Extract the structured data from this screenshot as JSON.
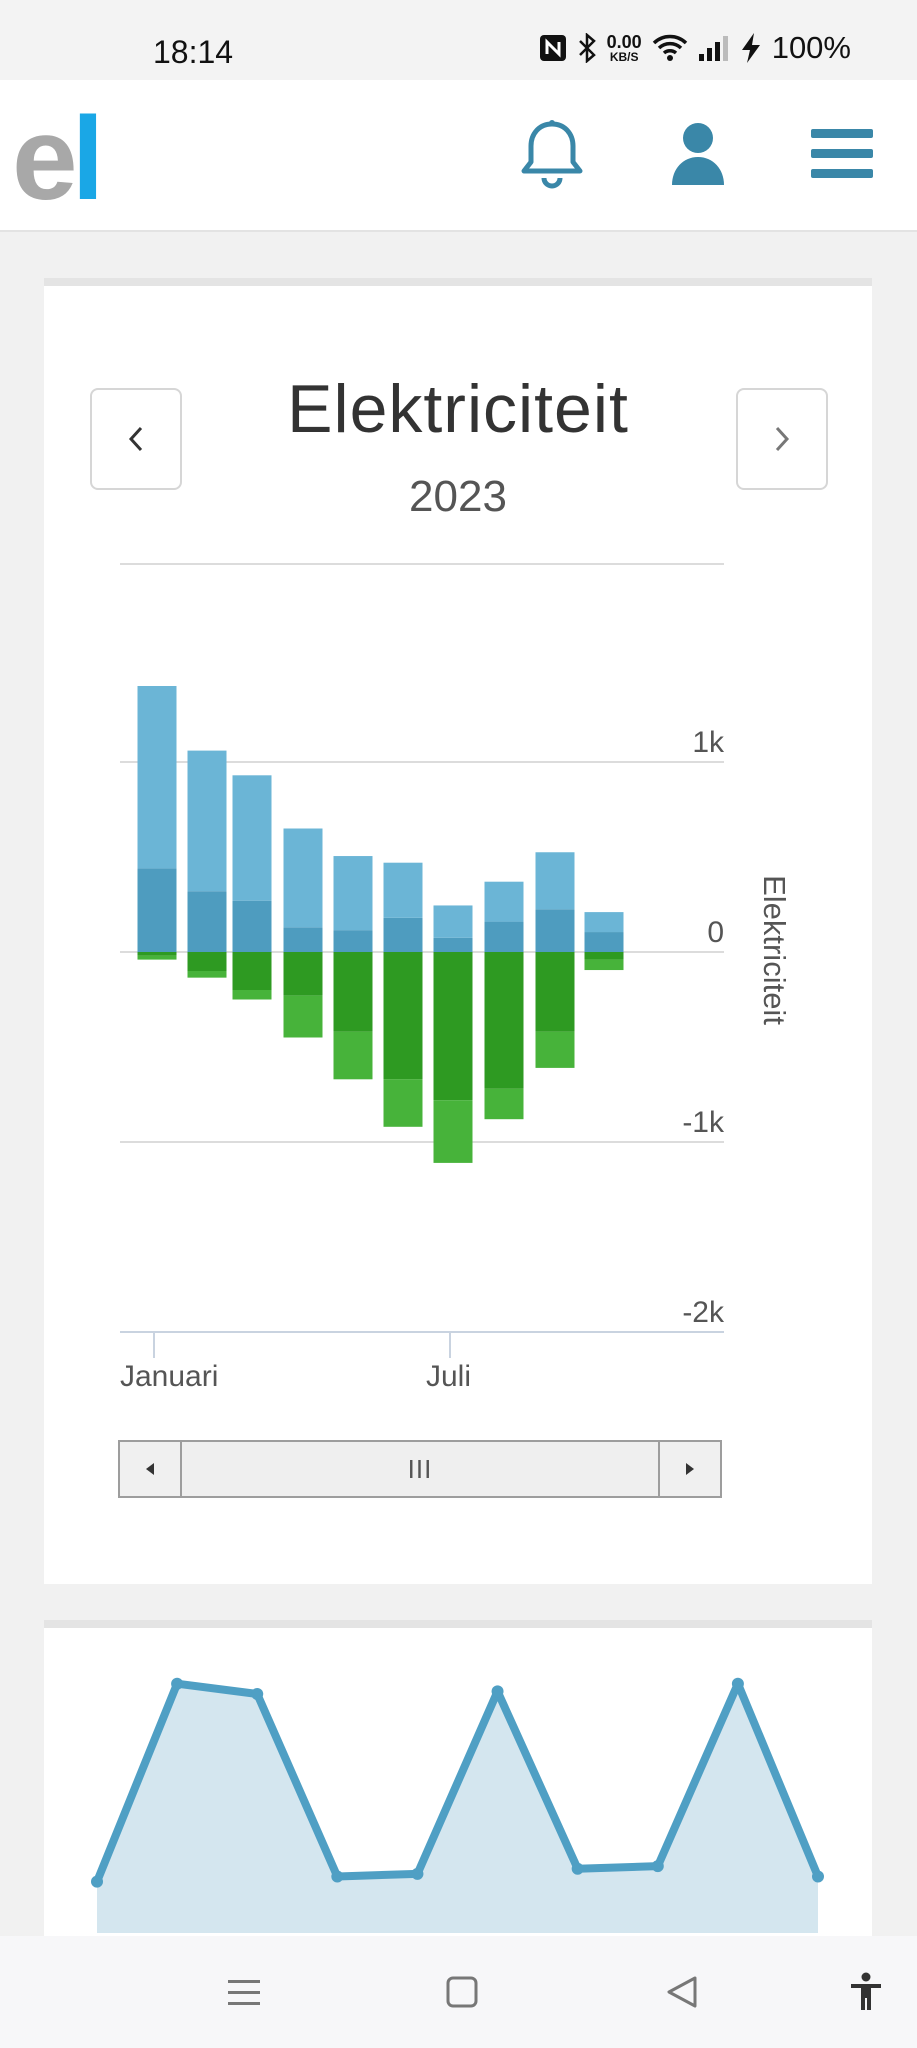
{
  "status_bar": {
    "time": "18:14",
    "net_speed_top": "0.00",
    "net_speed_unit": "KB/S",
    "battery": "100%"
  },
  "header": {
    "logo_text_1": "e",
    "logo_text_2": "l"
  },
  "card": {
    "title": "Elektriciteit",
    "year": "2023"
  },
  "chart_data": [
    {
      "type": "bar",
      "stacked": true,
      "categories": [
        "Januari",
        "",
        "",
        "",
        "",
        "",
        "Juli",
        "",
        "",
        ""
      ],
      "series": [
        {
          "color": "#6bb5d6",
          "values": [
            960,
            740,
            660,
            520,
            390,
            290,
            170,
            210,
            300,
            105
          ]
        },
        {
          "color": "#4e9cbf",
          "values": [
            440,
            320,
            270,
            130,
            115,
            180,
            75,
            160,
            225,
            105
          ]
        },
        {
          "color": "#2e9a22",
          "values": [
            -20,
            -100,
            -200,
            -230,
            -420,
            -670,
            -780,
            -720,
            -420,
            -40
          ]
        },
        {
          "color": "#47b33a",
          "values": [
            -20,
            -35,
            -50,
            -220,
            -250,
            -250,
            -330,
            -160,
            -190,
            -55
          ]
        }
      ],
      "ylim": [
        -2000,
        2000
      ],
      "y_ticks": [
        "1k",
        "0",
        "-1k",
        "-2k"
      ],
      "x_ticks": [
        "Januari",
        "Juli"
      ],
      "ylabel": "Elektriciteit",
      "grid": true
    },
    {
      "type": "area",
      "series": [
        {
          "color": "#4f9fc4",
          "values": [
            0.2,
            0.97,
            0.93,
            0.22,
            0.23,
            0.94,
            0.25,
            0.26,
            0.97,
            0.22
          ]
        },
        {
          "color": "#4caf3c",
          "values": [
            0,
            0,
            0,
            0,
            0,
            0,
            0,
            0,
            0,
            0
          ]
        }
      ]
    }
  ],
  "scrollbar": {
    "thumb_label": "III"
  }
}
